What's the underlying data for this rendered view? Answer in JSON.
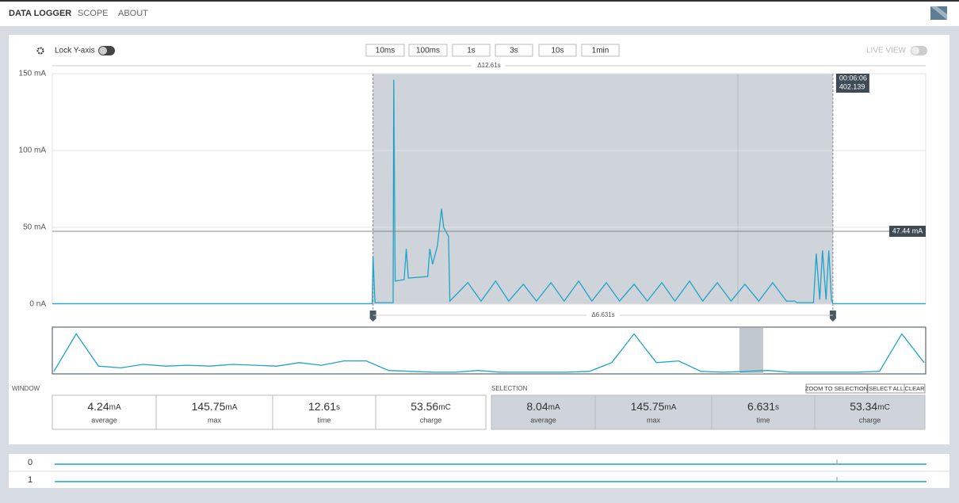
{
  "nav": {
    "tabs": [
      "DATA LOGGER",
      "SCOPE",
      "ABOUT"
    ]
  },
  "toolbar": {
    "lock_label": "Lock Y-axis",
    "zoom_buttons": [
      "10ms",
      "100ms",
      "1s",
      "3s",
      "10s",
      "1min"
    ],
    "live_label": "LIVE VIEW"
  },
  "chart": {
    "type": "line",
    "color": "#1fa3c9",
    "ylim": [
      0,
      150
    ],
    "xlim": [
      0,
      12.61
    ],
    "yticks": [
      {
        "value": 0,
        "label": "0 nA"
      },
      {
        "value": 50,
        "label": "50 mA"
      },
      {
        "value": 100,
        "label": "100 mA"
      },
      {
        "value": 150,
        "label": "150 mA"
      }
    ],
    "window_delta": "Δ12.61s",
    "selection_delta": "Δ6.631s",
    "selection_x": [
      4.63,
      11.27
    ],
    "cursor_time": "00:06:06",
    "cursor_value": "402.139",
    "marker": {
      "value": 47.44,
      "label": "47.44 mA"
    },
    "x": [
      0.0,
      4.62,
      4.63,
      4.66,
      4.92,
      4.93,
      4.95,
      5.08,
      5.11,
      5.14,
      5.42,
      5.45,
      5.49,
      5.56,
      5.62,
      5.65,
      5.72,
      5.74,
      6.0,
      6.19,
      6.4,
      6.59,
      6.8,
      6.99,
      7.2,
      7.39,
      7.6,
      7.79,
      8.0,
      8.19,
      8.4,
      8.59,
      8.8,
      8.99,
      9.2,
      9.39,
      9.6,
      9.8,
      10.0,
      10.2,
      10.4,
      10.6,
      10.72,
      10.75,
      10.99,
      11.03,
      11.08,
      11.12,
      11.17,
      11.21,
      11.25,
      11.27,
      12.61
    ],
    "values": [
      0.3,
      0.3,
      31,
      1,
      1,
      146,
      15,
      16,
      36,
      17,
      18,
      36,
      26,
      38,
      62,
      50,
      44,
      2,
      14,
      2,
      15,
      2,
      13,
      2,
      14,
      2,
      15,
      2,
      14,
      2,
      13,
      2,
      14,
      2,
      15,
      2,
      14,
      2,
      13,
      2,
      14,
      2,
      2,
      1,
      1,
      33,
      3,
      35,
      3,
      35,
      3,
      0.3,
      0.3
    ]
  },
  "overview": {
    "type": "line",
    "ylim": [
      0,
      50
    ],
    "values": [
      2,
      45,
      8,
      6,
      10,
      8,
      9,
      8,
      10,
      9,
      8,
      12,
      9,
      14,
      14,
      3,
      2,
      1,
      1,
      3,
      1,
      1,
      1,
      1,
      2,
      12,
      45,
      12,
      14,
      2,
      1,
      2,
      3,
      1,
      1,
      1,
      1,
      2,
      45,
      12
    ]
  },
  "window": {
    "title": "WINDOW",
    "stats": [
      {
        "value": "4.24",
        "unit": "mA",
        "label": "average"
      },
      {
        "value": "145.75",
        "unit": "mA",
        "label": "max"
      },
      {
        "value": "12.61",
        "unit": "s",
        "label": "time"
      },
      {
        "value": "53.56",
        "unit": "mC",
        "label": "charge"
      }
    ]
  },
  "selection": {
    "title": "SELECTION",
    "buttons": [
      "ZOOM TO SELECTION",
      "SELECT ALL",
      "CLEAR"
    ],
    "stats": [
      {
        "value": "8.04",
        "unit": "mA",
        "label": "average"
      },
      {
        "value": "145.75",
        "unit": "mA",
        "label": "max"
      },
      {
        "value": "6.631",
        "unit": "s",
        "label": "time"
      },
      {
        "value": "53.34",
        "unit": "mC",
        "label": "charge"
      }
    ]
  },
  "digital": {
    "channels": [
      "0",
      "1"
    ]
  }
}
